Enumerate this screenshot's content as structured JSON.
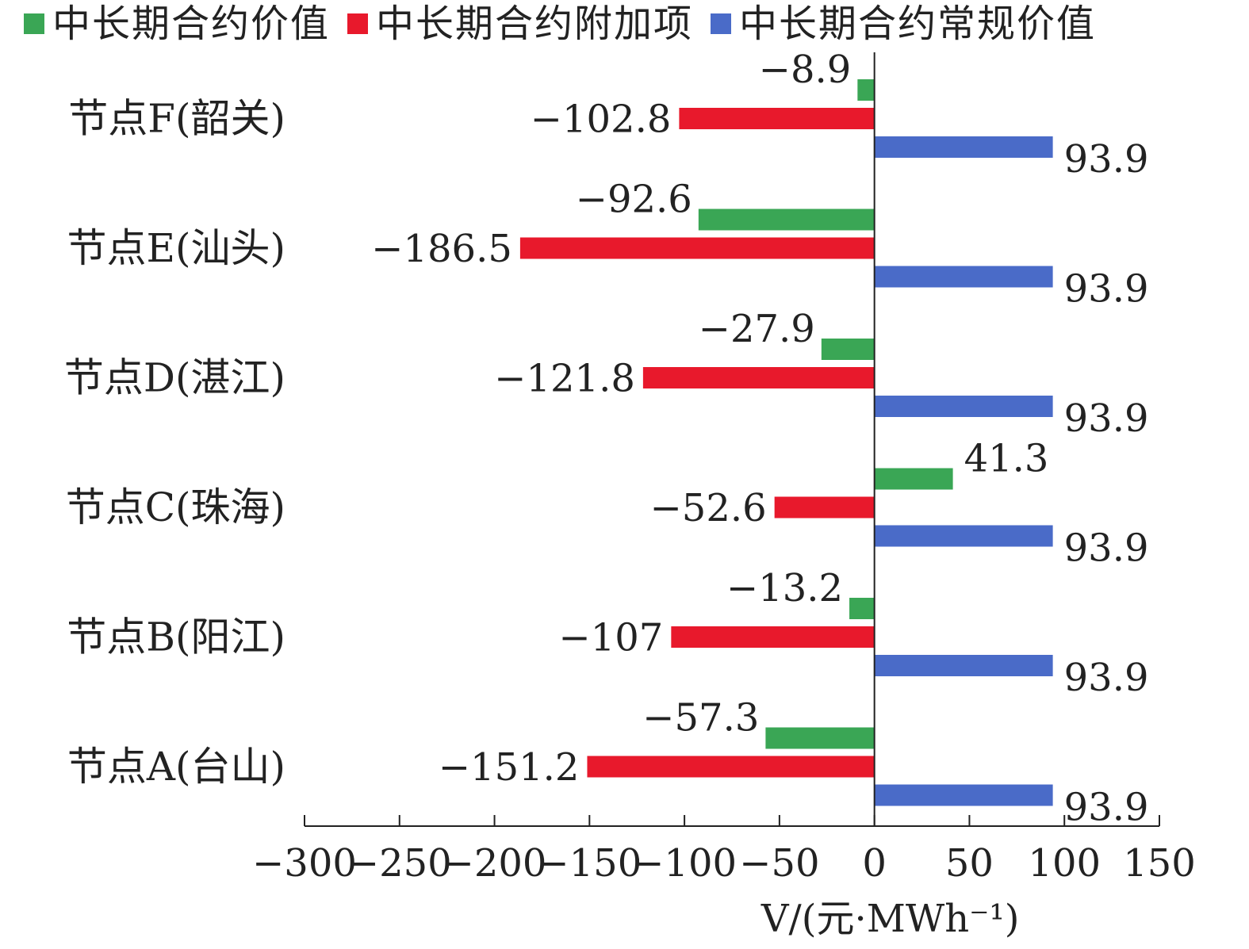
{
  "chart_data": {
    "type": "bar",
    "orientation": "horizontal",
    "categories": [
      "节点F(韶关)",
      "节点E(汕头)",
      "节点D(湛江)",
      "节点C(珠海)",
      "节点B(阳江)",
      "节点A(台山)"
    ],
    "series": [
      {
        "name": "中长期合约价值",
        "color": "#3aa655",
        "values": [
          -8.9,
          -92.6,
          -27.9,
          41.3,
          -13.2,
          -57.3
        ],
        "labels": [
          "−8.9",
          "−92.6",
          "−27.9",
          "41.3",
          "−13.2",
          "−57.3"
        ]
      },
      {
        "name": "中长期合约附加项",
        "color": "#e8192c",
        "values": [
          -102.8,
          -186.5,
          -121.8,
          -52.6,
          -107,
          -151.2
        ],
        "labels": [
          "−102.8",
          "−186.5",
          "−121.8",
          "−52.6",
          "−107",
          "−151.2"
        ]
      },
      {
        "name": "中长期合约常规价值",
        "color": "#4a6bc8",
        "values": [
          93.9,
          93.9,
          93.9,
          93.9,
          93.9,
          93.9
        ],
        "labels": [
          "93.9",
          "93.9",
          "93.9",
          "93.9",
          "93.9",
          "93.9"
        ]
      }
    ],
    "xlim": [
      -300,
      150
    ],
    "xticks": [
      -300,
      -250,
      -200,
      -150,
      -100,
      -50,
      0,
      50,
      100,
      150
    ],
    "xtick_labels": [
      "−300",
      "−250",
      "−200",
      "−150",
      "−100",
      "−50",
      "0",
      "50",
      "100",
      "150"
    ],
    "xlabel": "V/(元·MWh⁻¹)",
    "ylabel": "",
    "title": "",
    "legend_position": "top",
    "grid": false
  }
}
